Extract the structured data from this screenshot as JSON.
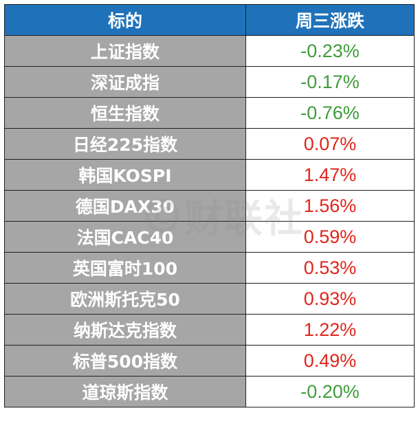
{
  "header": {
    "col_name": "标的",
    "col_change": "周三涨跌"
  },
  "rows": [
    {
      "name": "上证指数",
      "change": "-0.23%",
      "direction": "down"
    },
    {
      "name": "深证成指",
      "change": "-0.17%",
      "direction": "down"
    },
    {
      "name": "恒生指数",
      "change": "-0.76%",
      "direction": "down"
    },
    {
      "name": "日经225指数",
      "change": "0.07%",
      "direction": "up"
    },
    {
      "name": "韩国KOSPI",
      "change": "1.47%",
      "direction": "up"
    },
    {
      "name": "德国DAX30",
      "change": "1.56%",
      "direction": "up"
    },
    {
      "name": "法国CAC40",
      "change": "0.59%",
      "direction": "up"
    },
    {
      "name": "英国富时100",
      "change": "0.53%",
      "direction": "up"
    },
    {
      "name": "欧洲斯托克50",
      "change": "0.93%",
      "direction": "up"
    },
    {
      "name": "纳斯达克指数",
      "change": "1.22%",
      "direction": "up"
    },
    {
      "name": "标普500指数",
      "change": "0.49%",
      "direction": "up"
    },
    {
      "name": "道琼斯指数",
      "change": "-0.20%",
      "direction": "down"
    }
  ],
  "watermark": {
    "text": "财联社",
    "icon": "cls-logo-icon"
  },
  "colors": {
    "header_bg": "#1f72ba",
    "name_bg": "#a6a6a6",
    "negative": "#3f9b3a",
    "positive": "#e0251b"
  }
}
